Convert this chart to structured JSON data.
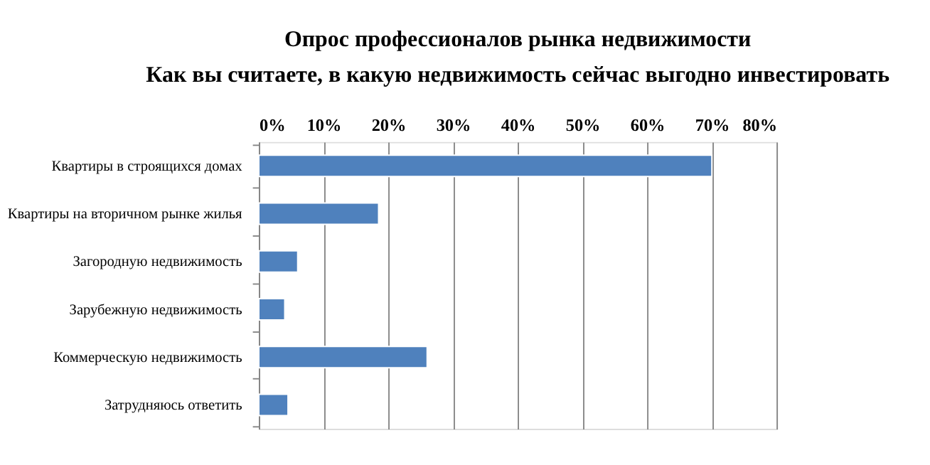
{
  "chart_data": {
    "type": "bar",
    "orientation": "horizontal",
    "title": "Опрос профессионалов рынка недвижимости",
    "subtitle": "Как вы считаете, в какую недвижимость сейчас выгодно инвестировать",
    "categories": [
      "Квартиры в строящихся домах",
      "Квартиры на вторичном рынке жилья",
      "Загородную недвижимость",
      "Зарубежную недвижимость",
      "Коммерческую недвижимость",
      "Затрудняюсь ответить"
    ],
    "values": [
      70,
      18.5,
      6,
      4,
      26,
      4.5
    ],
    "color": "#4f81bd",
    "xlim": [
      0,
      80
    ],
    "xticks": [
      {
        "value": 0,
        "label": "0%"
      },
      {
        "value": 10,
        "label": "10%"
      },
      {
        "value": 20,
        "label": "20%"
      },
      {
        "value": 30,
        "label": "30%"
      },
      {
        "value": 40,
        "label": "40%"
      },
      {
        "value": 50,
        "label": "50%"
      },
      {
        "value": 60,
        "label": "60%"
      },
      {
        "value": 70,
        "label": "70%"
      },
      {
        "value": 80,
        "label": "80%"
      }
    ],
    "grid": "x"
  }
}
